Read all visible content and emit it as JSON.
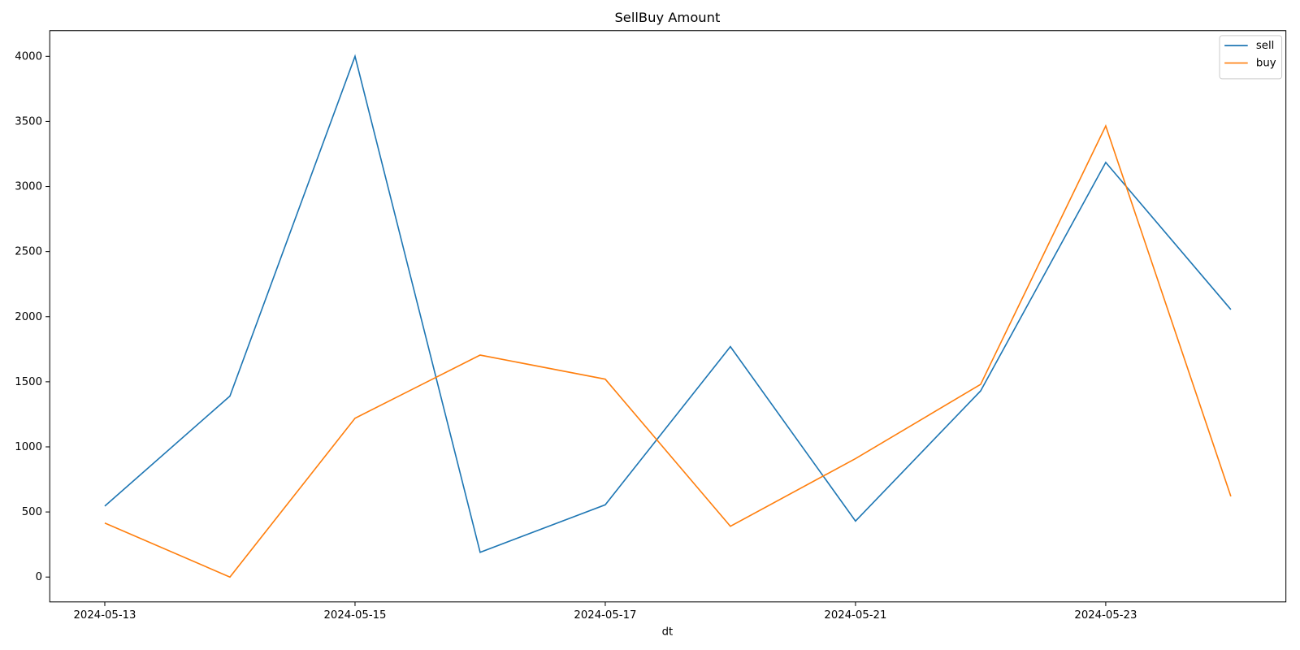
{
  "chart_data": {
    "type": "line",
    "title": "SellBuy Amount",
    "x_label": "dt",
    "categories": [
      "2024-05-13",
      null,
      "2024-05-15",
      null,
      "2024-05-17",
      null,
      "2024-05-21",
      null,
      "2024-05-23",
      null
    ],
    "series": [
      {
        "name": "sell",
        "color": "#1f77b4",
        "values": [
          545,
          1390,
          4000,
          190,
          555,
          1770,
          430,
          1430,
          3185,
          2055
        ]
      },
      {
        "name": "buy",
        "color": "#ff7f0e",
        "values": [
          415,
          0,
          1220,
          1705,
          1520,
          390,
          910,
          1480,
          3465,
          620
        ]
      }
    ],
    "ylim": [
      -191,
      4197
    ],
    "yticks": [
      0,
      500,
      1000,
      1500,
      2000,
      2500,
      3000,
      3500,
      4000
    ],
    "legend": "upper right"
  }
}
